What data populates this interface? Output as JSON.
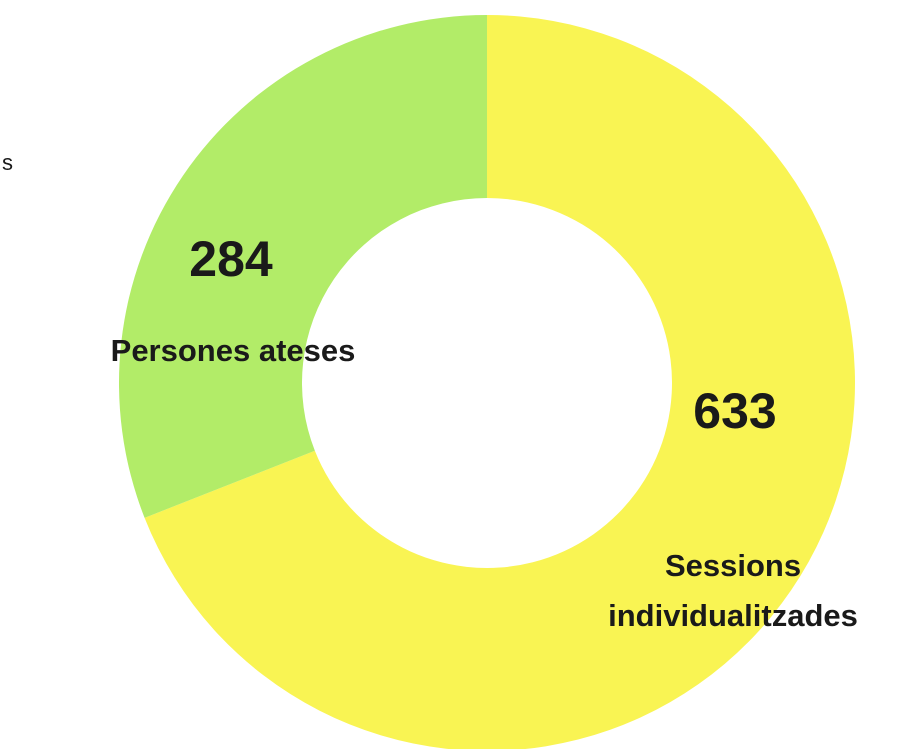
{
  "edge_glyph": "s",
  "chart_data": {
    "type": "pie",
    "donut": true,
    "slices": [
      {
        "value_label": "633",
        "value": 633,
        "label_lines": [
          "Sessions",
          "individualitzades"
        ],
        "color": "#f9f453"
      },
      {
        "value_label": "284",
        "value": 284,
        "label_lines": [
          "Persones ateses"
        ],
        "color": "#b2ec68"
      }
    ],
    "start": "top",
    "direction": "clockwise"
  }
}
